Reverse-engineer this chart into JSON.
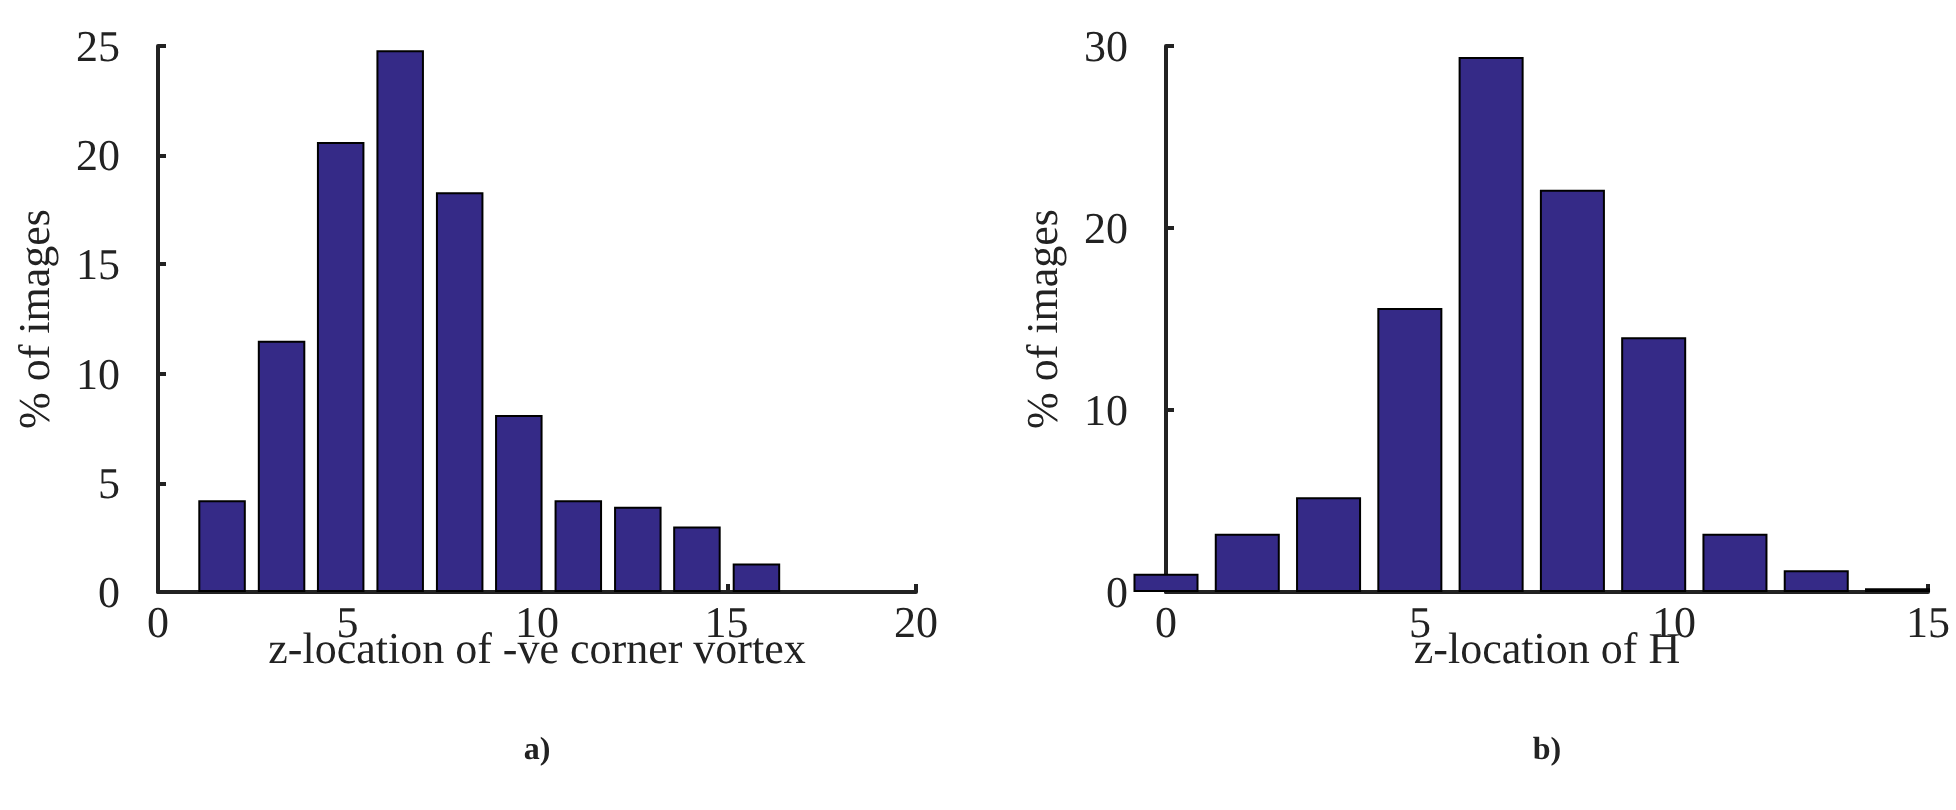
{
  "chart_data": [
    {
      "type": "bar",
      "xlabel": "z-location of -ve corner vortex",
      "ylabel": "% of images",
      "annotations": [
        "a)"
      ],
      "x": [
        1.69,
        3.26,
        4.82,
        6.39,
        7.96,
        9.52,
        11.09,
        12.66,
        14.22,
        15.79
      ],
      "values": [
        4.2,
        11.5,
        20.6,
        24.8,
        18.3,
        8.1,
        4.2,
        3.9,
        3.0,
        1.3
      ],
      "color": "#352a87",
      "xlim": [
        0,
        20
      ],
      "xticks": [
        0,
        5,
        10,
        15,
        20
      ],
      "ylim": [
        0,
        25
      ],
      "yticks": [
        0,
        5,
        10,
        15,
        20,
        25
      ],
      "grid": false
    },
    {
      "type": "bar",
      "xlabel": "z-location of H",
      "ylabel": "% of images",
      "annotations": [
        "b)"
      ],
      "x": [
        0,
        1.6,
        3.2,
        4.8,
        6.4,
        8.0,
        9.6,
        11.2,
        12.8,
        14.4
      ],
      "values": [
        1.0,
        3.2,
        5.2,
        15.6,
        29.4,
        22.1,
        14.0,
        3.2,
        1.2,
        0.2
      ],
      "color": "#352a87",
      "xlim": [
        0,
        15
      ],
      "xticks": [
        0,
        5,
        10,
        15
      ],
      "ylim": [
        0,
        30
      ],
      "yticks": [
        0,
        10,
        20,
        30
      ],
      "grid": false
    }
  ]
}
